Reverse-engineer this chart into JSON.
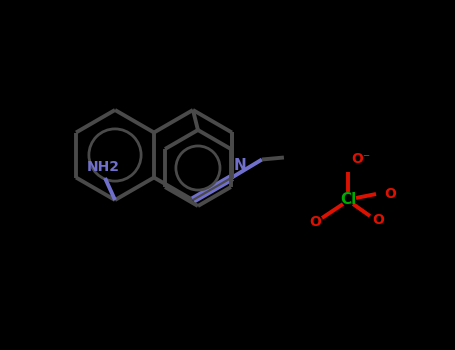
{
  "background_color": "#000000",
  "main_structure_color": "#4a4a4a",
  "nitrogen_color": "#7070cc",
  "oxygen_color": "#dd1100",
  "chlorine_color": "#00aa00",
  "nh2_label": "NH2",
  "n_label": "N",
  "cl_label": "Cl",
  "o_top_label": "O⁻",
  "o_left_label": "O",
  "o_right_label": "O",
  "figsize": [
    4.55,
    3.5
  ],
  "dpi": 100,
  "lw_main": 2.8,
  "lw_double": 2.0,
  "font_size": 10,
  "cl_font_size": 11
}
